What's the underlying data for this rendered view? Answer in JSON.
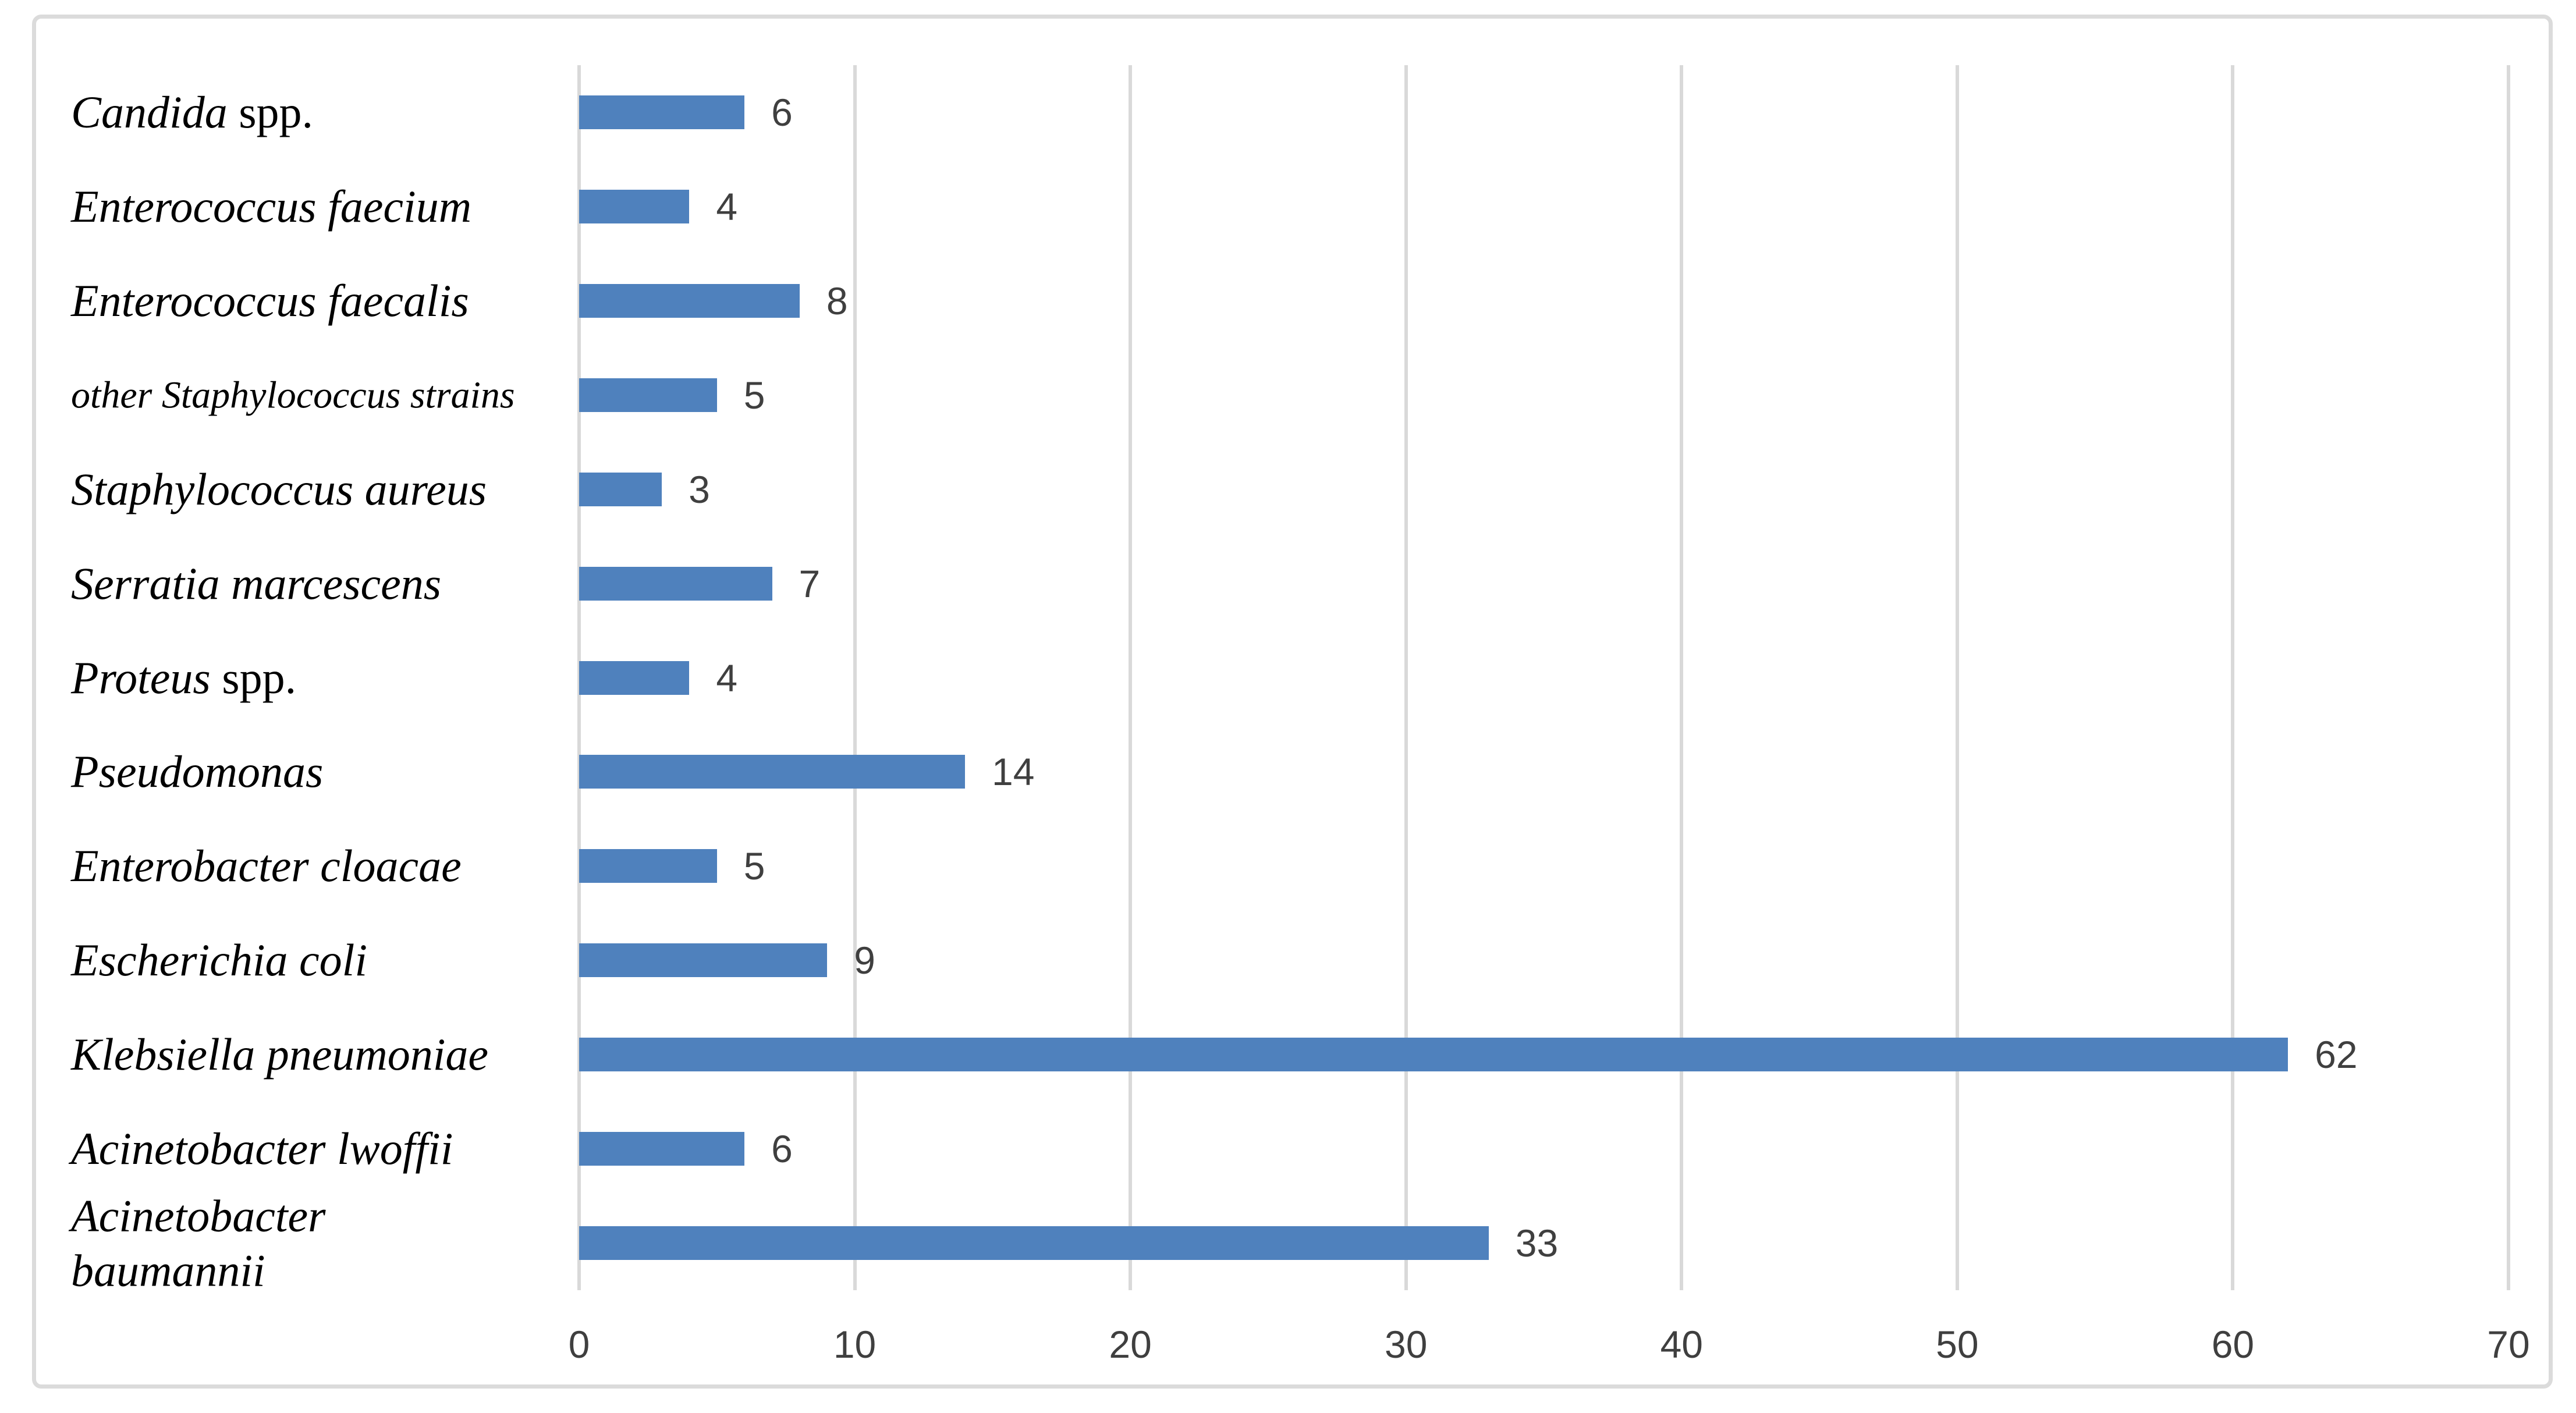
{
  "figure": {
    "background_color": "#ffffff",
    "border_color": "#dbdbdb"
  },
  "chart_data": {
    "type": "bar",
    "orientation": "horizontal",
    "title": "",
    "xlabel": "",
    "ylabel": "",
    "xlim": [
      0,
      70
    ],
    "x_ticks": [
      "0",
      "10",
      "20",
      "30",
      "40",
      "50",
      "60",
      "70"
    ],
    "grid": "vertical-major",
    "legend": "none",
    "bar_color": "#4f81bd",
    "gridline_color": "#d9d9d9",
    "tick_label_color": "#3f3f3f",
    "value_label_color": "#3f3f3f",
    "category_label_color": "#000000",
    "value_labels_shown": true,
    "categories": [
      {
        "label": "Candida spp.",
        "italic": "Candida",
        "roman": " spp.",
        "value": 6
      },
      {
        "label": "Enterococcus faecium",
        "italic": "Enterococcus faecium",
        "roman": "",
        "value": 4
      },
      {
        "label": "Enterococcus faecalis",
        "italic": "Enterococcus faecalis",
        "roman": "",
        "value": 8
      },
      {
        "label": "other Staphylococcus strains",
        "italic": "other Staphylococcus strains",
        "roman": "",
        "value": 5
      },
      {
        "label": "Staphylococcus aureus",
        "italic": "Staphylococcus aureus",
        "roman": "",
        "value": 3
      },
      {
        "label": "Serratia marcescens",
        "italic": "Serratia marcescens",
        "roman": "",
        "value": 7
      },
      {
        "label": "Proteus spp.",
        "italic": "Proteus",
        "roman": " spp.",
        "value": 4
      },
      {
        "label": "Pseudomonas",
        "italic": "Pseudomonas",
        "roman": "",
        "value": 14
      },
      {
        "label": "Enterobacter cloacae",
        "italic": "Enterobacter cloacae",
        "roman": "",
        "value": 5
      },
      {
        "label": "Escherichia coli",
        "italic": "Escherichia coli",
        "roman": "",
        "value": 9
      },
      {
        "label": "Klebsiella pneumoniae",
        "italic": "Klebsiella pneumoniae",
        "roman": "",
        "value": 62
      },
      {
        "label": "Acinetobacter lwoffii",
        "italic": "Acinetobacter lwoffii",
        "roman": "",
        "value": 6
      },
      {
        "label": "Acinetobacter baumannii",
        "italic": "Acinetobacter\nbaumannii",
        "roman": "",
        "value": 33
      }
    ]
  }
}
